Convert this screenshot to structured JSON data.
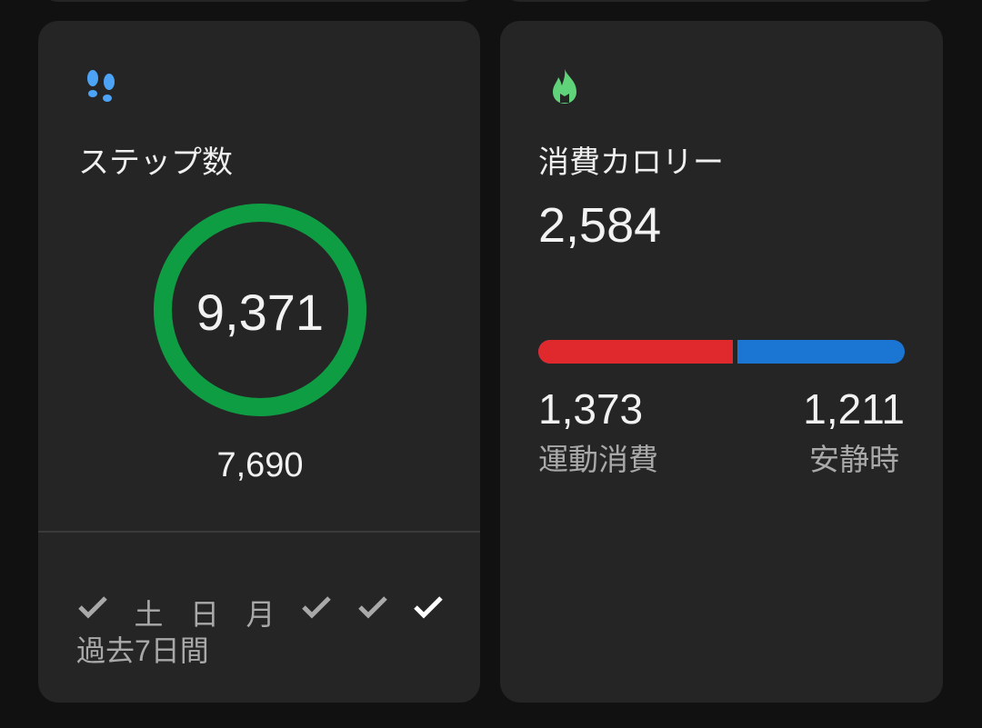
{
  "steps": {
    "icon": "footprints-icon",
    "icon_color": "#4da3f5",
    "title": "ステップ数",
    "value": "9,371",
    "goal": "7,690",
    "ring_color": "#0f9d43",
    "ring_progress": 1.0,
    "week": [
      {
        "type": "check",
        "done": true,
        "current": false
      },
      {
        "type": "label",
        "label": "土"
      },
      {
        "type": "label",
        "label": "日"
      },
      {
        "type": "label",
        "label": "月"
      },
      {
        "type": "check",
        "done": true,
        "current": false
      },
      {
        "type": "check",
        "done": true,
        "current": false
      },
      {
        "type": "check",
        "done": true,
        "current": true
      }
    ],
    "period_label": "過去7日間"
  },
  "calories": {
    "icon": "flame-icon",
    "icon_color": "#5fd27a",
    "title": "消費カロリー",
    "total": "2,584",
    "active_value": "1,373",
    "active_label": "運動消費",
    "active_color": "#e0292d",
    "resting_value": "1,211",
    "resting_label": "安静時",
    "resting_color": "#1a76d2",
    "active_fraction": 0.531
  }
}
